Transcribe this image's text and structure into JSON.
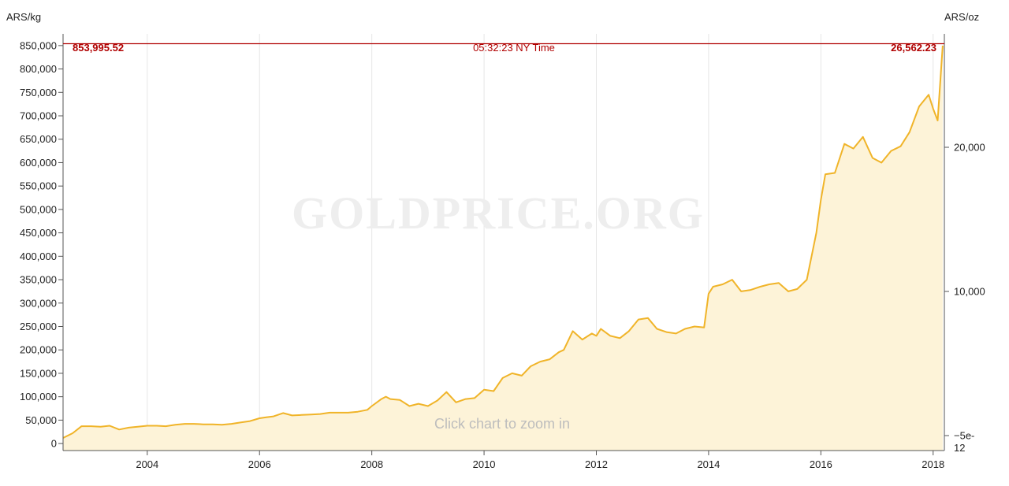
{
  "chart_data": {
    "type": "area",
    "left_unit": "ARS/kg",
    "right_unit": "ARS/oz",
    "watermark": "GOLDPRICE.ORG",
    "hint": "Click chart to zoom in",
    "current_price_kg": "853,995.52",
    "current_price_oz": "26,562.23",
    "timestamp": "05:32:23 NY Time",
    "current_value": 853995.52,
    "x_range": [
      2002.5,
      2018.2
    ],
    "y_left_range": [
      -15000,
      875000
    ],
    "x_ticks": [
      {
        "value": 2004,
        "label": "2004"
      },
      {
        "value": 2006,
        "label": "2006"
      },
      {
        "value": 2008,
        "label": "2008"
      },
      {
        "value": 2010,
        "label": "2010"
      },
      {
        "value": 2012,
        "label": "2012"
      },
      {
        "value": 2014,
        "label": "2014"
      },
      {
        "value": 2016,
        "label": "2016"
      },
      {
        "value": 2018,
        "label": "2018"
      }
    ],
    "y_left_ticks": [
      {
        "value": 0,
        "label": "0"
      },
      {
        "value": 50000,
        "label": "50,000"
      },
      {
        "value": 100000,
        "label": "100,000"
      },
      {
        "value": 150000,
        "label": "150,000"
      },
      {
        "value": 200000,
        "label": "200,000"
      },
      {
        "value": 250000,
        "label": "250,000"
      },
      {
        "value": 300000,
        "label": "300,000"
      },
      {
        "value": 350000,
        "label": "350,000"
      },
      {
        "value": 400000,
        "label": "400,000"
      },
      {
        "value": 450000,
        "label": "450,000"
      },
      {
        "value": 500000,
        "label": "500,000"
      },
      {
        "value": 550000,
        "label": "550,000"
      },
      {
        "value": 600000,
        "label": "600,000"
      },
      {
        "value": 650000,
        "label": "650,000"
      },
      {
        "value": 700000,
        "label": "700,000"
      },
      {
        "value": 750000,
        "label": "750,000"
      },
      {
        "value": 800000,
        "label": "800,000"
      },
      {
        "value": 850000,
        "label": "850,000"
      }
    ],
    "y_right_ticks": [
      {
        "value": 20000,
        "label": "20,000"
      },
      {
        "value": 10000,
        "label": "10,000"
      },
      {
        "value": 0,
        "label": "−5e-12"
      }
    ],
    "colors": {
      "line": "#f0b429",
      "fill": "#fdf3d8",
      "highlight": "#b00000",
      "grid": "#e6e6e6",
      "axis": "#555555"
    },
    "series": [
      {
        "x": [
          2002.5,
          2002.67,
          2002.83,
          2003.0,
          2003.17,
          2003.33,
          2003.5,
          2003.67,
          2003.83,
          2004.0,
          2004.17,
          2004.33,
          2004.5,
          2004.67,
          2004.83,
          2005.0,
          2005.17,
          2005.33,
          2005.5,
          2005.67,
          2005.83,
          2006.0,
          2006.12,
          2006.25,
          2006.42,
          2006.58,
          2006.75,
          2006.92,
          2007.08,
          2007.25,
          2007.42,
          2007.58,
          2007.75,
          2007.92,
          2008.0,
          2008.17,
          2008.25,
          2008.33,
          2008.5,
          2008.67,
          2008.83,
          2009.0,
          2009.17,
          2009.33,
          2009.5,
          2009.67,
          2009.83,
          2010.0,
          2010.17,
          2010.33,
          2010.5,
          2010.67,
          2010.83,
          2011.0,
          2011.17,
          2011.33,
          2011.42,
          2011.58,
          2011.75,
          2011.92,
          2012.0,
          2012.08,
          2012.25,
          2012.42,
          2012.58,
          2012.75,
          2012.92,
          2013.08,
          2013.25,
          2013.42,
          2013.58,
          2013.75,
          2013.92,
          2014.0,
          2014.08,
          2014.25,
          2014.42,
          2014.58,
          2014.75,
          2014.92,
          2015.08,
          2015.25,
          2015.42,
          2015.58,
          2015.75,
          2015.92,
          2016.0,
          2016.08,
          2016.25,
          2016.42,
          2016.58,
          2016.75,
          2016.92,
          2017.08,
          2017.25,
          2017.42,
          2017.58,
          2017.75,
          2017.92,
          2018.0,
          2018.08,
          2018.17
        ],
        "values": [
          12000,
          22000,
          37000,
          37000,
          36000,
          38000,
          30000,
          34000,
          36000,
          38000,
          38000,
          37000,
          40000,
          42000,
          42000,
          41000,
          41000,
          40000,
          42000,
          45000,
          48000,
          54000,
          56000,
          58000,
          65000,
          60000,
          61000,
          62000,
          63000,
          66000,
          66000,
          66000,
          68000,
          72000,
          80000,
          95000,
          100000,
          95000,
          93000,
          80000,
          85000,
          80000,
          92000,
          110000,
          88000,
          95000,
          97000,
          115000,
          112000,
          140000,
          150000,
          145000,
          165000,
          175000,
          180000,
          195000,
          200000,
          240000,
          222000,
          235000,
          230000,
          245000,
          230000,
          225000,
          240000,
          265000,
          268000,
          245000,
          238000,
          235000,
          245000,
          250000,
          248000,
          320000,
          335000,
          340000,
          350000,
          325000,
          328000,
          335000,
          340000,
          343000,
          325000,
          330000,
          350000,
          450000,
          520000,
          575000,
          578000,
          640000,
          630000,
          655000,
          610000,
          600000,
          625000,
          635000,
          665000,
          720000,
          745000,
          715000,
          690000,
          850000
        ]
      }
    ]
  }
}
